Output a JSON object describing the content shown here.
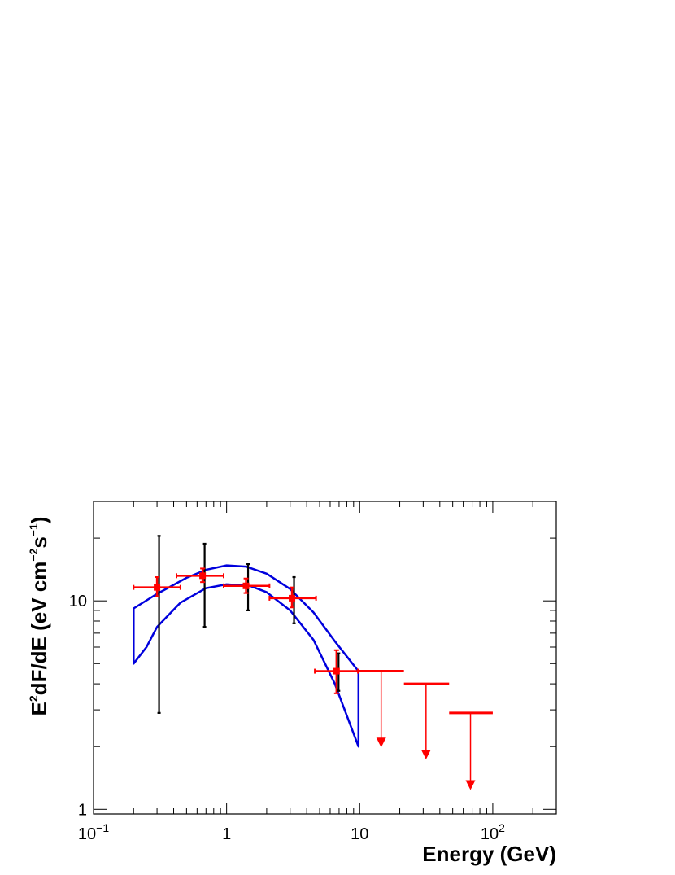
{
  "chart_data": {
    "type": "scatter",
    "xscale": "log",
    "yscale": "log",
    "xlim": [
      0.1,
      300
    ],
    "ylim": [
      0.95,
      30
    ],
    "xlabel": "Energy (GeV)",
    "ylabel": {
      "base": "E",
      "sup1": "2",
      "mid1": "dF/dE (eV cm",
      "sup2": "−2",
      "mid2": "s",
      "sup3": "−1",
      "end": ")"
    },
    "x_ticks": [
      {
        "value": 0.1,
        "base": "10",
        "exp": "−1"
      },
      {
        "value": 1,
        "base": "1",
        "exp": ""
      },
      {
        "value": 10,
        "base": "10",
        "exp": ""
      },
      {
        "value": 100,
        "base": "10",
        "exp": "2"
      }
    ],
    "y_ticks": [
      {
        "value": 1,
        "label": "1"
      },
      {
        "value": 10,
        "label": "10"
      }
    ],
    "colors": {
      "points": "#ff0000",
      "sys_errors": "#000000",
      "model_band": "#0000dd"
    },
    "series": [
      {
        "points": [
          {
            "x": 0.3,
            "y": 11.6,
            "xlo": 0.2,
            "xhi": 0.45,
            "ylo_stat": 10.5,
            "yhi_stat": 13.0,
            "ylo_sys": 2.9,
            "yhi_sys": 20.5
          },
          {
            "x": 0.66,
            "y": 13.2,
            "xlo": 0.42,
            "xhi": 0.95,
            "ylo_stat": 12.3,
            "yhi_stat": 14.3,
            "ylo_sys": 7.5,
            "yhi_sys": 18.8
          },
          {
            "x": 1.4,
            "y": 11.8,
            "xlo": 0.95,
            "xhi": 2.1,
            "ylo_stat": 10.9,
            "yhi_stat": 12.8,
            "ylo_sys": 9.0,
            "yhi_sys": 15.0
          },
          {
            "x": 3.1,
            "y": 10.3,
            "xlo": 2.1,
            "xhi": 4.7,
            "ylo_stat": 9.3,
            "yhi_stat": 11.6,
            "ylo_sys": 7.8,
            "yhi_sys": 13.0
          },
          {
            "x": 6.7,
            "y": 4.6,
            "xlo": 4.6,
            "xhi": 9.7,
            "ylo_stat": 3.6,
            "yhi_stat": 5.8,
            "ylo_sys": 3.7,
            "yhi_sys": 5.6
          }
        ]
      },
      {
        "upper_limits": [
          {
            "x": 14.5,
            "y": 4.6,
            "xlo": 9.7,
            "xhi": 21.5,
            "arrow_to": 2.0
          },
          {
            "x": 31.5,
            "y": 4.0,
            "xlo": 21.5,
            "xhi": 47,
            "arrow_to": 1.75
          },
          {
            "x": 68,
            "y": 2.9,
            "xlo": 47,
            "xhi": 100,
            "arrow_to": 1.25
          }
        ]
      },
      {
        "band_upper": [
          [
            0.2,
            9.2
          ],
          [
            0.3,
            10.8
          ],
          [
            0.5,
            12.9
          ],
          [
            0.7,
            14.1
          ],
          [
            1.0,
            14.8
          ],
          [
            1.4,
            14.6
          ],
          [
            2.0,
            13.5
          ],
          [
            3.0,
            11.4
          ],
          [
            4.5,
            8.8
          ],
          [
            6.5,
            6.4
          ],
          [
            9.8,
            4.6
          ]
        ],
        "band_lower": [
          [
            0.2,
            5.0
          ],
          [
            0.25,
            6.0
          ],
          [
            0.3,
            7.5
          ],
          [
            0.45,
            9.8
          ],
          [
            0.7,
            11.5
          ],
          [
            1.0,
            12.0
          ],
          [
            1.5,
            11.8
          ],
          [
            2.0,
            11.0
          ],
          [
            3.0,
            9.0
          ],
          [
            4.5,
            6.5
          ],
          [
            6.5,
            4.0
          ],
          [
            9.8,
            2.0
          ]
        ]
      }
    ]
  }
}
